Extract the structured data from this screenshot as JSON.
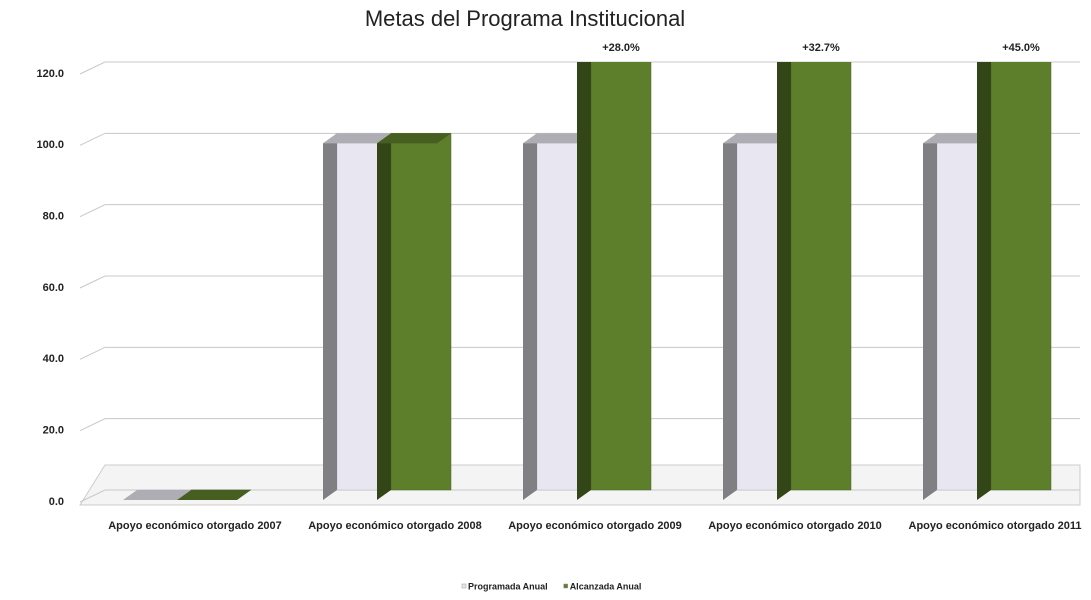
{
  "chart_data": {
    "type": "bar3d",
    "title": "Metas del Programa Institucional",
    "categories": [
      "Apoyo económico otorgado 2007",
      "Apoyo económico otorgado 2008",
      "Apoyo económico otorgado 2009",
      "Apoyo económico otorgado 2010",
      "Apoyo económico otorgado 2011"
    ],
    "series": [
      {
        "name": "Programada Anual",
        "color": "#e8e6f0",
        "values": [
          0,
          100,
          100,
          100,
          100
        ]
      },
      {
        "name": "Alcanzada Anual",
        "color": "#5d7f2c",
        "values": [
          0,
          100,
          128,
          132.7,
          145
        ],
        "annotations": [
          null,
          null,
          "+28.0%",
          "+32.7%",
          "+45.0%"
        ]
      }
    ],
    "ylim": [
      0,
      120
    ],
    "yticks": [
      {
        "value": 0,
        "label": "0.0"
      },
      {
        "value": 20,
        "label": "20.0"
      },
      {
        "value": 40,
        "label": "40.0"
      },
      {
        "value": 60,
        "label": "60.0"
      },
      {
        "value": 80,
        "label": "80.0"
      },
      {
        "value": 100,
        "label": "100.0"
      },
      {
        "value": 120,
        "label": "120.0"
      }
    ],
    "grid": true,
    "legend": "bottom"
  }
}
